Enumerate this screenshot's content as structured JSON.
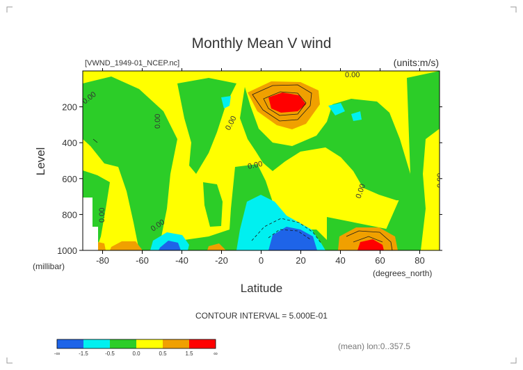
{
  "chart_data": {
    "type": "heatmap",
    "title": "Monthly Mean V wind",
    "file_label": "[VWND_1949-01_NCEP.nc]",
    "units_label": "(units:m/s)",
    "xlabel": "Latitude",
    "x_unit": "(degrees_north)",
    "ylabel": "Level",
    "y_unit": "(millibar)",
    "x_ticks": [
      "-80",
      "-60",
      "-40",
      "-20",
      "0",
      "20",
      "40",
      "60",
      "80"
    ],
    "y_ticks": [
      "200",
      "400",
      "600",
      "800",
      "1000"
    ],
    "xlim": [
      -90,
      90
    ],
    "ylim": [
      0,
      1000
    ],
    "y_reversed": true,
    "contour_interval_text": "CONTOUR INTERVAL = 5.000E-01",
    "contour_labels": [
      "0.00",
      "0.00",
      "0.00",
      "0.00",
      "0.00",
      "0.00",
      "0.00",
      "0.00",
      "0.00"
    ],
    "footer_text": "(mean) lon:0..357.5",
    "colorbar": {
      "colors": [
        "#1e64e8",
        "#00f0f0",
        "#2ccd28",
        "#ffff00",
        "#f0a000",
        "#ff0000"
      ],
      "labels": [
        "-∞",
        "-1.5",
        "-0.5",
        "0.0",
        "0.5",
        "1.5",
        "∞"
      ]
    },
    "features": [
      {
        "name": "upper-jet-max",
        "lat": 10,
        "level": 160,
        "value": "> 1.5"
      },
      {
        "name": "surface-min",
        "lat": 12,
        "level": 960,
        "value": "< -1.5"
      },
      {
        "name": "surface-max-north",
        "lat": 55,
        "level": 980,
        "value": "> 1.5"
      },
      {
        "name": "surface-min-south",
        "lat": -45,
        "level": 980,
        "value": "< -0.5"
      }
    ]
  }
}
